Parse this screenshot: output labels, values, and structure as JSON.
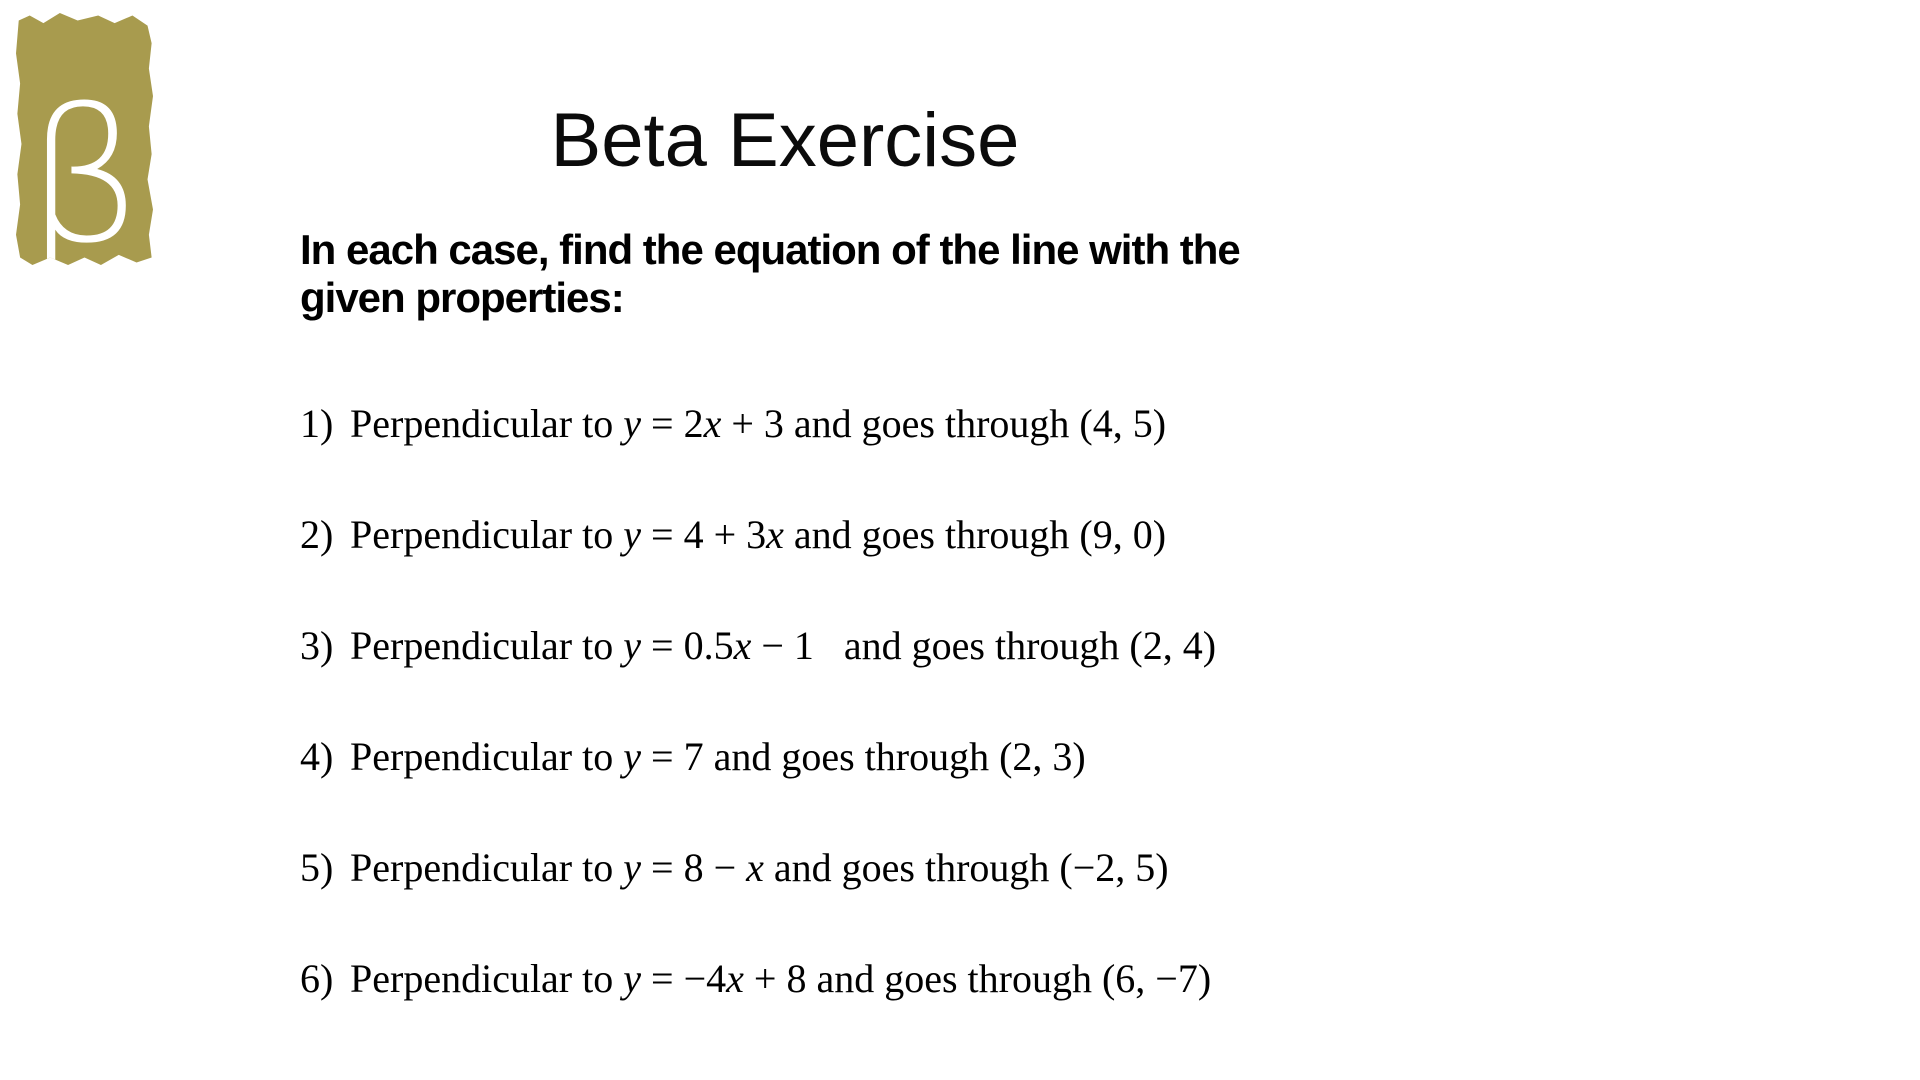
{
  "logo": {
    "glyph": "β",
    "background_color": "#a89b4e"
  },
  "title": "Beta Exercise",
  "instruction": {
    "line1": "In each case, find the equation of the line with the",
    "line2": "given properties:"
  },
  "items": [
    {
      "num": "1)",
      "segments": [
        {
          "text": "Perpendicular to ",
          "italic": false
        },
        {
          "text": "y",
          "italic": true
        },
        {
          "text": " = 2",
          "italic": false
        },
        {
          "text": "x",
          "italic": true
        },
        {
          "text": " + 3 and goes through (4, 5)",
          "italic": false
        }
      ]
    },
    {
      "num": "2)",
      "segments": [
        {
          "text": "Perpendicular to ",
          "italic": false
        },
        {
          "text": "y",
          "italic": true
        },
        {
          "text": " = 4 + 3",
          "italic": false
        },
        {
          "text": "x",
          "italic": true
        },
        {
          "text": " and goes through (9, 0)",
          "italic": false
        }
      ]
    },
    {
      "num": "3)",
      "segments": [
        {
          "text": "Perpendicular to ",
          "italic": false
        },
        {
          "text": "y",
          "italic": true
        },
        {
          "text": " = 0.5",
          "italic": false
        },
        {
          "text": "x",
          "italic": true
        },
        {
          "text": " − 1   and goes through (2, 4)",
          "italic": false
        }
      ]
    },
    {
      "num": "4)",
      "segments": [
        {
          "text": "Perpendicular to ",
          "italic": false
        },
        {
          "text": "y",
          "italic": true
        },
        {
          "text": " = 7 and goes through (2, 3)",
          "italic": false
        }
      ]
    },
    {
      "num": "5)",
      "segments": [
        {
          "text": "Perpendicular to ",
          "italic": false
        },
        {
          "text": "y",
          "italic": true
        },
        {
          "text": " = 8 − ",
          "italic": false
        },
        {
          "text": "x",
          "italic": true
        },
        {
          "text": " and goes through (−2, 5)",
          "italic": false
        }
      ]
    },
    {
      "num": "6)",
      "segments": [
        {
          "text": "Perpendicular to ",
          "italic": false
        },
        {
          "text": "y",
          "italic": true
        },
        {
          "text": " = −4",
          "italic": false
        },
        {
          "text": "x",
          "italic": true
        },
        {
          "text": " + 8 and goes through (6, −7)",
          "italic": false
        }
      ]
    }
  ]
}
